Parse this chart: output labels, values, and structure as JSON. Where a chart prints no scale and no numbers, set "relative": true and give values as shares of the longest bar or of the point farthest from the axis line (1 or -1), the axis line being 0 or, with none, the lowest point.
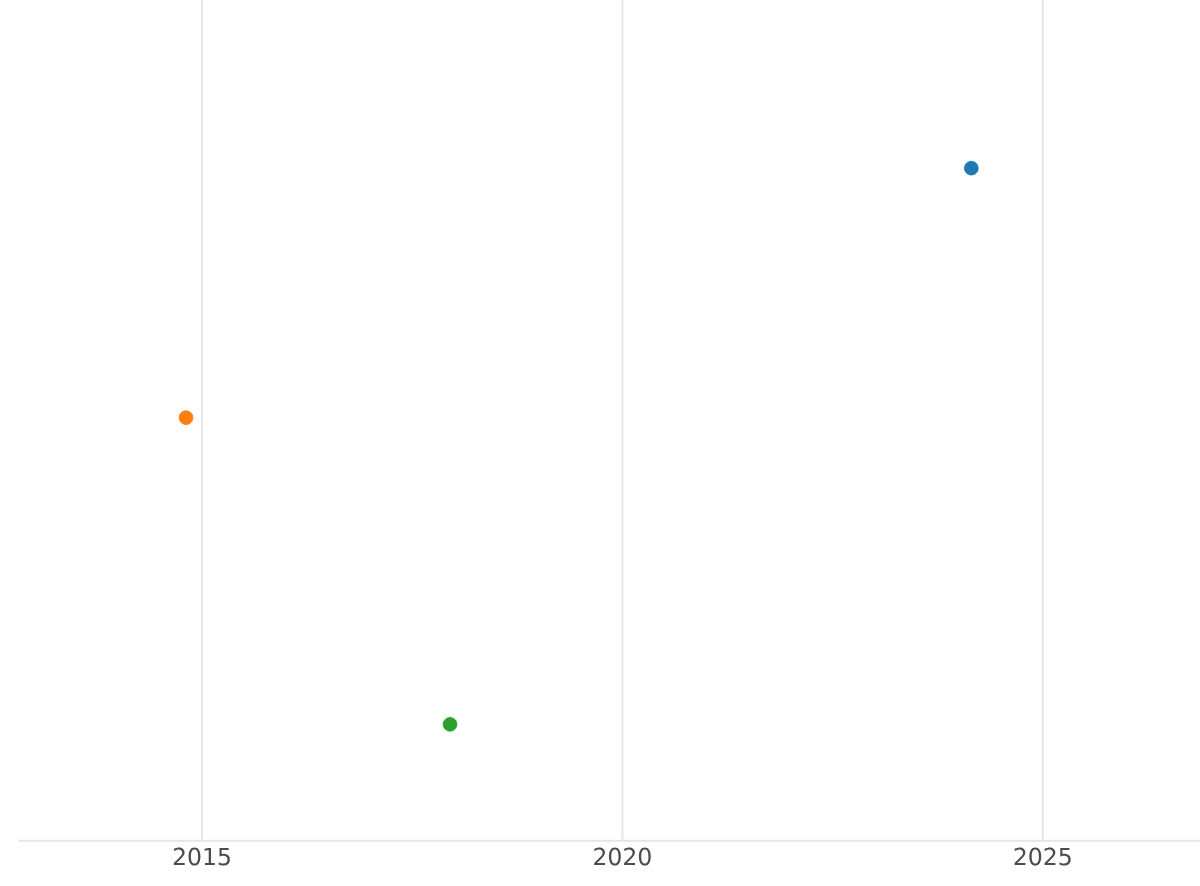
{
  "chart_data": {
    "type": "scatter",
    "relative": true,
    "x": [
      2024.15,
      2014.81,
      2017.95
    ],
    "values": [
      1,
      0.629,
      0.173
    ],
    "colors": [
      "#1f77b4",
      "#ff7f0e",
      "#2ca02c"
    ],
    "xlim": [
      2012.82,
      2026.87
    ],
    "xticks": [
      2015,
      2020,
      2025
    ],
    "grid": "x",
    "marker": "circle"
  }
}
